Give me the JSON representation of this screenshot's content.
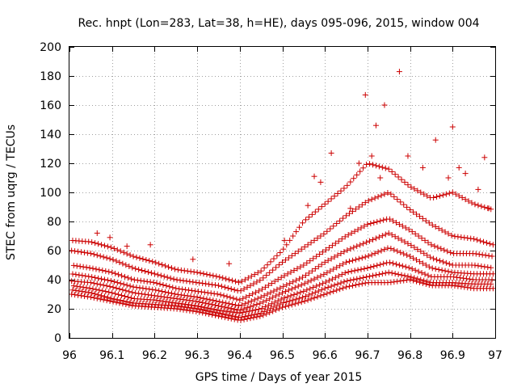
{
  "chart_data": {
    "type": "scatter",
    "title": "Rec. hnpt (Lon=283, Lat=38, h=HE), days 095-096, 2015, window 004",
    "xlabel": "GPS time / Days of year 2015",
    "ylabel": "STEC from uqrg / TECUs",
    "xlim": [
      96,
      97
    ],
    "ylim": [
      0,
      200
    ],
    "xticks": [
      96,
      96.1,
      96.2,
      96.3,
      96.4,
      96.5,
      96.6,
      96.7,
      96.8,
      96.9,
      97
    ],
    "xtick_labels": [
      "96",
      "96.1",
      "96.2",
      "96.3",
      "96.4",
      "96.5",
      "96.6",
      "96.7",
      "96.8",
      "96.9",
      "97"
    ],
    "yticks": [
      0,
      20,
      40,
      60,
      80,
      100,
      120,
      140,
      160,
      180,
      200
    ],
    "ytick_labels": [
      "0",
      "20",
      "40",
      "60",
      "80",
      "100",
      "120",
      "140",
      "160",
      "180",
      "200"
    ],
    "grid": true,
    "marker": "plus",
    "color": "#cc0000",
    "series_tracks": [
      [
        [
          96.005,
          30
        ],
        [
          96.05,
          28
        ],
        [
          96.1,
          25
        ],
        [
          96.15,
          22
        ],
        [
          96.2,
          21
        ],
        [
          96.25,
          20
        ],
        [
          96.3,
          18
        ],
        [
          96.35,
          15
        ],
        [
          96.4,
          12
        ],
        [
          96.45,
          15
        ],
        [
          96.5,
          21
        ],
        [
          96.55,
          25
        ],
        [
          96.6,
          30
        ],
        [
          96.65,
          35
        ],
        [
          96.7,
          38
        ],
        [
          96.75,
          38
        ],
        [
          96.8,
          40
        ],
        [
          96.85,
          36
        ],
        [
          96.9,
          36
        ],
        [
          96.95,
          34
        ],
        [
          96.995,
          34
        ]
      ],
      [
        [
          96.005,
          33
        ],
        [
          96.05,
          31
        ],
        [
          96.1,
          27
        ],
        [
          96.15,
          24
        ],
        [
          96.2,
          23
        ],
        [
          96.25,
          22
        ],
        [
          96.3,
          20
        ],
        [
          96.35,
          17
        ],
        [
          96.4,
          14
        ],
        [
          96.45,
          17
        ],
        [
          96.5,
          24
        ],
        [
          96.55,
          28
        ],
        [
          96.6,
          34
        ],
        [
          96.65,
          39
        ],
        [
          96.7,
          42
        ],
        [
          96.75,
          45
        ],
        [
          96.8,
          42
        ],
        [
          96.85,
          38
        ],
        [
          96.9,
          38
        ],
        [
          96.95,
          37
        ],
        [
          96.995,
          37
        ]
      ],
      [
        [
          96.005,
          36
        ],
        [
          96.05,
          34
        ],
        [
          96.1,
          31
        ],
        [
          96.15,
          27
        ],
        [
          96.2,
          26
        ],
        [
          96.25,
          24
        ],
        [
          96.3,
          22
        ],
        [
          96.35,
          19
        ],
        [
          96.4,
          17
        ],
        [
          96.45,
          20
        ],
        [
          96.5,
          27
        ],
        [
          96.55,
          32
        ],
        [
          96.6,
          38
        ],
        [
          96.65,
          45
        ],
        [
          96.7,
          48
        ],
        [
          96.75,
          52
        ],
        [
          96.8,
          48
        ],
        [
          96.85,
          42
        ],
        [
          96.9,
          42
        ],
        [
          96.95,
          40
        ],
        [
          96.995,
          40
        ]
      ],
      [
        [
          96.005,
          39
        ],
        [
          96.05,
          38
        ],
        [
          96.1,
          35
        ],
        [
          96.15,
          31
        ],
        [
          96.2,
          29
        ],
        [
          96.25,
          27
        ],
        [
          96.3,
          25
        ],
        [
          96.35,
          22
        ],
        [
          96.4,
          19
        ],
        [
          96.45,
          24
        ],
        [
          96.5,
          31
        ],
        [
          96.55,
          37
        ],
        [
          96.6,
          44
        ],
        [
          96.65,
          52
        ],
        [
          96.7,
          56
        ],
        [
          96.75,
          62
        ],
        [
          96.8,
          56
        ],
        [
          96.85,
          48
        ],
        [
          96.9,
          45
        ],
        [
          96.95,
          44
        ],
        [
          96.995,
          44
        ]
      ],
      [
        [
          96.005,
          44
        ],
        [
          96.05,
          42
        ],
        [
          96.1,
          39
        ],
        [
          96.15,
          35
        ],
        [
          96.2,
          33
        ],
        [
          96.25,
          30
        ],
        [
          96.3,
          28
        ],
        [
          96.35,
          25
        ],
        [
          96.4,
          22
        ],
        [
          96.45,
          28
        ],
        [
          96.5,
          35
        ],
        [
          96.55,
          42
        ],
        [
          96.6,
          52
        ],
        [
          96.65,
          60
        ],
        [
          96.7,
          66
        ],
        [
          96.75,
          72
        ],
        [
          96.8,
          64
        ],
        [
          96.85,
          55
        ],
        [
          96.9,
          50
        ],
        [
          96.95,
          50
        ],
        [
          96.995,
          48
        ]
      ],
      [
        [
          96.005,
          50
        ],
        [
          96.05,
          48
        ],
        [
          96.1,
          45
        ],
        [
          96.15,
          40
        ],
        [
          96.2,
          38
        ],
        [
          96.25,
          34
        ],
        [
          96.3,
          32
        ],
        [
          96.35,
          30
        ],
        [
          96.4,
          26
        ],
        [
          96.45,
          33
        ],
        [
          96.5,
          42
        ],
        [
          96.55,
          50
        ],
        [
          96.6,
          60
        ],
        [
          96.65,
          70
        ],
        [
          96.7,
          78
        ],
        [
          96.75,
          82
        ],
        [
          96.8,
          74
        ],
        [
          96.85,
          64
        ],
        [
          96.9,
          58
        ],
        [
          96.95,
          58
        ],
        [
          96.995,
          56
        ]
      ],
      [
        [
          96.005,
          60
        ],
        [
          96.05,
          58
        ],
        [
          96.1,
          54
        ],
        [
          96.15,
          48
        ],
        [
          96.2,
          44
        ],
        [
          96.25,
          40
        ],
        [
          96.3,
          38
        ],
        [
          96.35,
          36
        ],
        [
          96.4,
          32
        ],
        [
          96.45,
          40
        ],
        [
          96.5,
          52
        ],
        [
          96.55,
          62
        ],
        [
          96.6,
          72
        ],
        [
          96.65,
          84
        ],
        [
          96.7,
          94
        ],
        [
          96.75,
          100
        ],
        [
          96.8,
          88
        ],
        [
          96.85,
          78
        ],
        [
          96.9,
          70
        ],
        [
          96.95,
          68
        ],
        [
          96.995,
          64
        ]
      ],
      [
        [
          96.005,
          67
        ],
        [
          96.05,
          66
        ],
        [
          96.1,
          62
        ],
        [
          96.15,
          56
        ],
        [
          96.2,
          52
        ],
        [
          96.25,
          47
        ],
        [
          96.3,
          45
        ],
        [
          96.35,
          42
        ],
        [
          96.4,
          38
        ],
        [
          96.45,
          46
        ],
        [
          96.5,
          60
        ],
        [
          96.55,
          80
        ],
        [
          96.6,
          92
        ],
        [
          96.65,
          104
        ],
        [
          96.7,
          120
        ],
        [
          96.75,
          116
        ],
        [
          96.8,
          104
        ],
        [
          96.85,
          96
        ],
        [
          96.9,
          100
        ],
        [
          96.95,
          92
        ],
        [
          96.995,
          88
        ]
      ]
    ],
    "outliers": [
      [
        96.065,
        72
      ],
      [
        96.095,
        69
      ],
      [
        96.135,
        63
      ],
      [
        96.19,
        64
      ],
      [
        96.29,
        54
      ],
      [
        96.375,
        51
      ],
      [
        96.505,
        67
      ],
      [
        96.56,
        91
      ],
      [
        96.575,
        111
      ],
      [
        96.59,
        107
      ],
      [
        96.615,
        127
      ],
      [
        96.66,
        89
      ],
      [
        96.68,
        120
      ],
      [
        96.695,
        167
      ],
      [
        96.71,
        125
      ],
      [
        96.72,
        146
      ],
      [
        96.73,
        110
      ],
      [
        96.74,
        160
      ],
      [
        96.775,
        183
      ],
      [
        96.795,
        125
      ],
      [
        96.83,
        117
      ],
      [
        96.86,
        136
      ],
      [
        96.89,
        110
      ],
      [
        96.9,
        145
      ],
      [
        96.915,
        117
      ],
      [
        96.93,
        113
      ],
      [
        96.96,
        102
      ],
      [
        96.975,
        124
      ],
      [
        96.985,
        89
      ]
    ]
  }
}
